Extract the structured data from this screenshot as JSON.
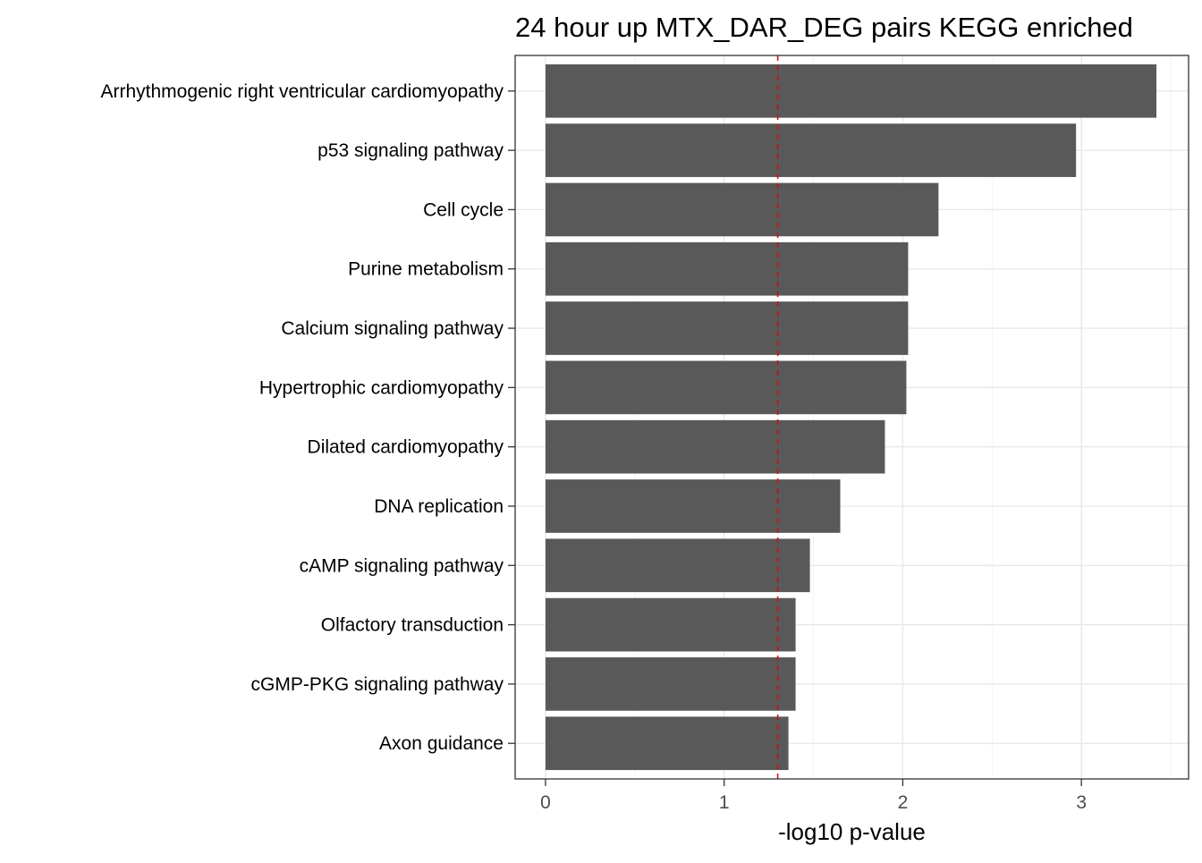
{
  "chart_data": {
    "type": "bar",
    "orientation": "horizontal",
    "title": "24 hour up MTX_DAR_DEG pairs  KEGG enriched",
    "xlabel": "-log10 p-value",
    "ylabel": "",
    "xlim": [
      -0.17,
      3.6
    ],
    "xticks": [
      0,
      1,
      2,
      3
    ],
    "grid": true,
    "threshold_line": {
      "value": 1.3,
      "color": "#cc1111",
      "style": "dashed"
    },
    "bar_color": "#595959",
    "categories": [
      "Arrhythmogenic right ventricular cardiomyopathy",
      "p53 signaling pathway",
      "Cell cycle",
      "Purine metabolism",
      "Calcium signaling pathway",
      "Hypertrophic cardiomyopathy",
      "Dilated cardiomyopathy",
      "DNA replication",
      "cAMP signaling pathway",
      "Olfactory transduction",
      "cGMP-PKG signaling pathway",
      "Axon guidance"
    ],
    "values": [
      3.42,
      2.97,
      2.2,
      2.03,
      2.03,
      2.02,
      1.9,
      1.65,
      1.48,
      1.4,
      1.4,
      1.36
    ]
  }
}
